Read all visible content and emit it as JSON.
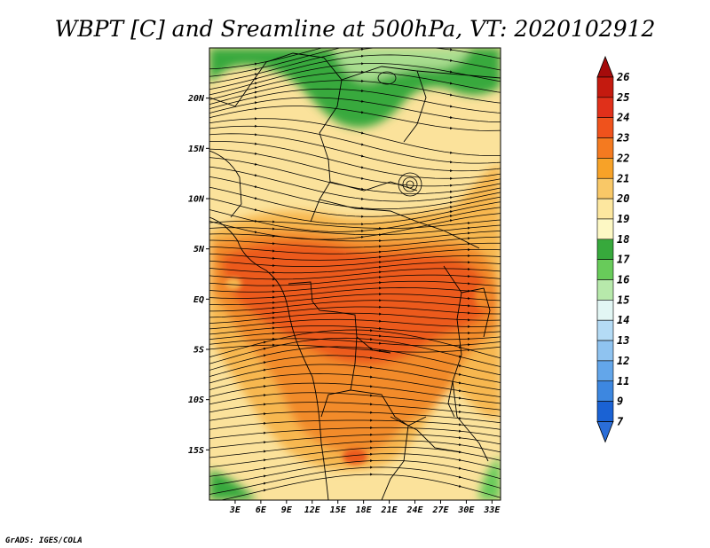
{
  "title": "WBPT [C] and Sreamline at 500hPa, VT: 2020102912",
  "credit": "GrADS: IGES/COLA",
  "map": {
    "lon_range": [
      0,
      34
    ],
    "lat_range": [
      -20,
      25
    ],
    "lat_ticks": [
      {
        "value": 20,
        "label": "20N"
      },
      {
        "value": 15,
        "label": "15N"
      },
      {
        "value": 10,
        "label": "10N"
      },
      {
        "value": 5,
        "label": "5N"
      },
      {
        "value": 0,
        "label": "EQ"
      },
      {
        "value": -5,
        "label": "5S"
      },
      {
        "value": -10,
        "label": "10S"
      },
      {
        "value": -15,
        "label": "15S"
      }
    ],
    "lon_ticks": [
      {
        "value": 3,
        "label": "3E"
      },
      {
        "value": 6,
        "label": "6E"
      },
      {
        "value": 9,
        "label": "9E"
      },
      {
        "value": 12,
        "label": "12E"
      },
      {
        "value": 15,
        "label": "15E"
      },
      {
        "value": 18,
        "label": "18E"
      },
      {
        "value": 21,
        "label": "21E"
      },
      {
        "value": 24,
        "label": "24E"
      },
      {
        "value": 27,
        "label": "27E"
      },
      {
        "value": 30,
        "label": "30E"
      },
      {
        "value": 33,
        "label": "33E"
      }
    ]
  },
  "colorbar": {
    "levels": [
      {
        "label": "26",
        "color": "#a50b0b"
      },
      {
        "label": "25",
        "color": "#c41a0f"
      },
      {
        "label": "24",
        "color": "#e0301a"
      },
      {
        "label": "23",
        "color": "#ef521c"
      },
      {
        "label": "22",
        "color": "#f47a20"
      },
      {
        "label": "21",
        "color": "#f7a228"
      },
      {
        "label": "20",
        "color": "#f9c867"
      },
      {
        "label": "19",
        "color": "#fde79f"
      },
      {
        "label": "18",
        "color": "#fdf8c4"
      },
      {
        "label": "17",
        "color": "#37a93c"
      },
      {
        "label": "16",
        "color": "#68cb5a"
      },
      {
        "label": "15",
        "color": "#b7e9ab"
      },
      {
        "label": "14",
        "color": "#e2f6f4"
      },
      {
        "label": "13",
        "color": "#b4dbf5"
      },
      {
        "label": "12",
        "color": "#8fc3f0"
      },
      {
        "label": "11",
        "color": "#63a6ea"
      },
      {
        "label": "9",
        "color": "#3d87e0"
      },
      {
        "label": "7",
        "color": "#1a62d4"
      }
    ],
    "bottom_color": "#2a6dd8"
  },
  "colors": {
    "base": "#fbe29b",
    "light_orange": "#f7b750",
    "orange": "#f28b2b",
    "red_orange": "#ec5a1f",
    "green": "#37a93c",
    "light_green": "#68cb5a",
    "pale_green": "#a9dd8f"
  }
}
